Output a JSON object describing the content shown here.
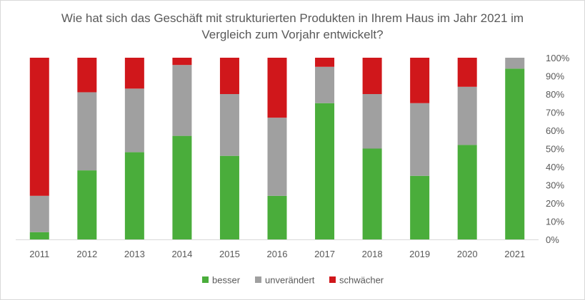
{
  "chart_data": {
    "type": "bar",
    "stacked": true,
    "title_lines": [
      "Wie hat sich das Geschäft mit strukturierten Produkten in Ihrem Haus im Jahr 2021 im",
      "Vergleich zum Vorjahr entwickelt?"
    ],
    "categories": [
      "2011",
      "2012",
      "2013",
      "2014",
      "2015",
      "2016",
      "2017",
      "2018",
      "2019",
      "2020",
      "2021"
    ],
    "series": [
      {
        "name": "besser",
        "color": "#4aad3b",
        "values": [
          4,
          38,
          48,
          57,
          46,
          24,
          75,
          50,
          35,
          52,
          94
        ]
      },
      {
        "name": "unverändert",
        "color": "#a0a0a0",
        "values": [
          20,
          43,
          35,
          39,
          34,
          43,
          20,
          30,
          40,
          32,
          6
        ]
      },
      {
        "name": "schwächer",
        "color": "#d0171b",
        "values": [
          76,
          19,
          17,
          4,
          20,
          33,
          5,
          20,
          25,
          16,
          0
        ]
      }
    ],
    "y_ticks": [
      "0%",
      "10%",
      "20%",
      "30%",
      "40%",
      "50%",
      "60%",
      "70%",
      "80%",
      "90%",
      "100%"
    ],
    "ylim": [
      0,
      100
    ],
    "y_axis_position": "right",
    "grid": false,
    "legend_position": "bottom"
  }
}
